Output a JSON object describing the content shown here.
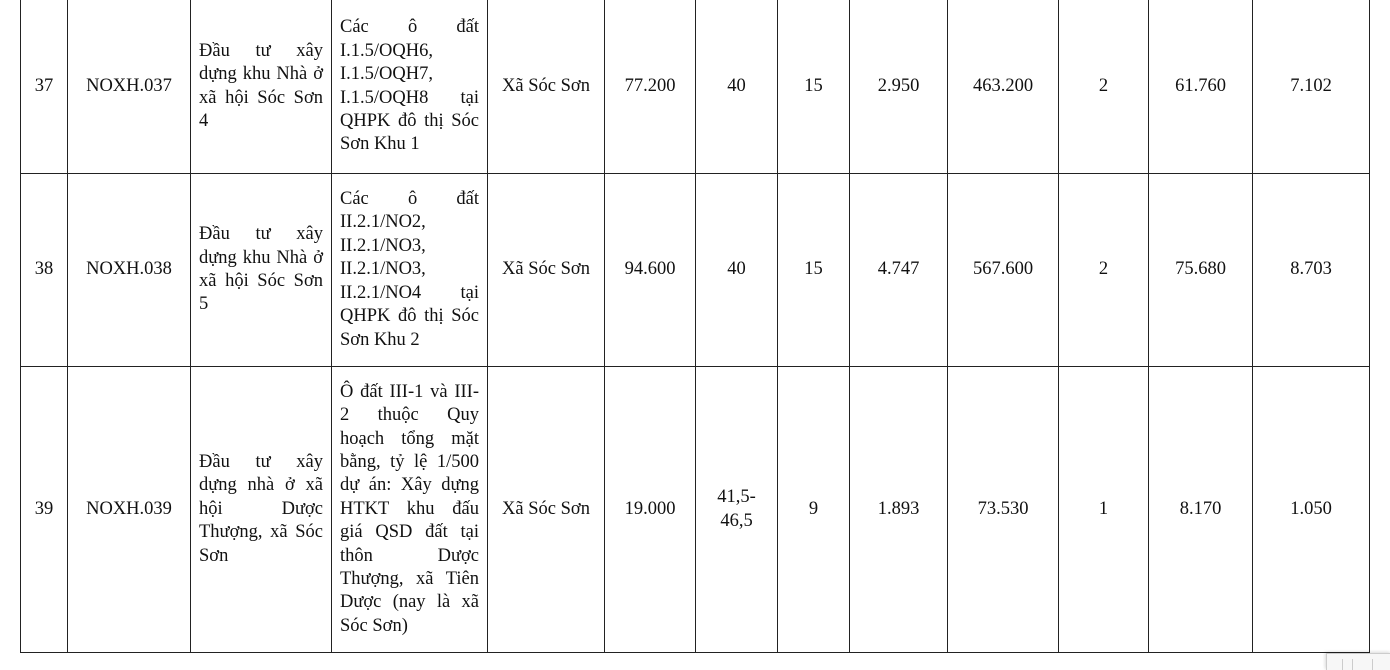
{
  "rows": [
    {
      "stt": "37",
      "code": "NOXH.037",
      "name": "Đầu tư xây dựng khu Nhà ở xã hội Sóc Sơn 4",
      "location_detail": "Các ô đất I.1.5/OQH6, I.1.5/OQH7, I.1.5/OQH8 tại QHPK đô thị Sóc Sơn Khu 1",
      "commune": "Xã Sóc Sơn",
      "c6": "77.200",
      "c7": "40",
      "c8": "15",
      "c9": "2.950",
      "c10": "463.200",
      "c11": "2",
      "c12": "61.760",
      "c13": "7.102"
    },
    {
      "stt": "38",
      "code": "NOXH.038",
      "name": "Đầu tư xây dựng khu Nhà ở xã hội Sóc Sơn 5",
      "location_detail": "Các ô đất II.2.1/NO2, II.2.1/NO3, II.2.1/NO3, II.2.1/NO4 tại QHPK đô thị Sóc Sơn Khu 2",
      "commune": "Xã Sóc Sơn",
      "c6": "94.600",
      "c7": "40",
      "c8": "15",
      "c9": "4.747",
      "c10": "567.600",
      "c11": "2",
      "c12": "75.680",
      "c13": "8.703"
    },
    {
      "stt": "39",
      "code": "NOXH.039",
      "name": "Đầu tư xây dựng nhà ở xã hội Dược Thượng, xã Sóc Sơn",
      "location_detail": "Ô đất III-1 và III-2 thuộc Quy hoạch tổng mặt bằng, tỷ lệ 1/500 dự án: Xây dựng HTKT khu đấu giá QSD đất tại thôn Dược Thượng, xã Tiên Dược (nay là xã Sóc Sơn)",
      "commune": "Xã Sóc Sơn",
      "c6": "19.000",
      "c7": "41,5-46,5",
      "c8": "9",
      "c9": "1.893",
      "c10": "73.530",
      "c11": "1",
      "c12": "8.170",
      "c13": "1.050"
    }
  ]
}
